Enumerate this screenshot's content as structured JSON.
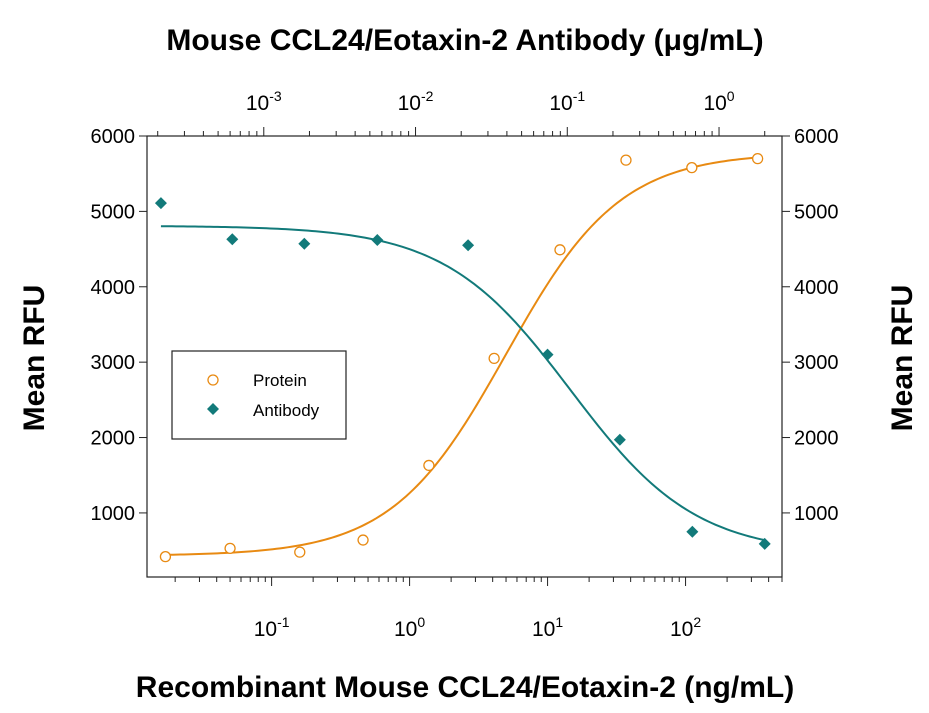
{
  "chart_data": {
    "type": "scatter",
    "title": "Mouse CCL24/Eotaxin-2 Antibody (μg/mL)",
    "xlabel": "Recombinant Mouse CCL24/Eotaxin-2 (ng/mL)",
    "ylabel": "Mean RFU",
    "ylabel_right": "Mean RFU",
    "x_scale": "log",
    "xlim": [
      0.0125,
      500
    ],
    "ylim": [
      150,
      6000
    ],
    "y_ticks": [
      1000,
      2000,
      3000,
      4000,
      5000,
      6000
    ],
    "x_ticks": [
      {
        "value": 0.1,
        "base": "10",
        "exp": "-1"
      },
      {
        "value": 1,
        "base": "10",
        "exp": "0"
      },
      {
        "value": 10,
        "base": "10",
        "exp": "1"
      },
      {
        "value": 100,
        "base": "10",
        "exp": "2"
      }
    ],
    "x2_scale": "log",
    "x2lim": [
      0.00017,
      2.6
    ],
    "x2_ticks": [
      {
        "value": 0.001,
        "base": "10",
        "exp": "-3"
      },
      {
        "value": 0.01,
        "base": "10",
        "exp": "-2"
      },
      {
        "value": 0.1,
        "base": "10",
        "exp": "-1"
      },
      {
        "value": 1,
        "base": "10",
        "exp": "0"
      }
    ],
    "legend_position": "left",
    "series": [
      {
        "name": "Protein",
        "marker": "open-circle",
        "color": "#E88A12",
        "axis": "bottom",
        "points": [
          [
            0.017,
            420
          ],
          [
            0.05,
            530
          ],
          [
            0.16,
            480
          ],
          [
            0.46,
            640
          ],
          [
            1.38,
            1630
          ],
          [
            4.1,
            3050
          ],
          [
            12.3,
            4490
          ],
          [
            37,
            5680
          ],
          [
            111,
            5580
          ],
          [
            333,
            5700
          ]
        ],
        "fit": {
          "bottom": 430,
          "top": 5780,
          "ec50": 5.0,
          "hill": 1.05
        }
      },
      {
        "name": "Antibody",
        "marker": "filled-diamond",
        "color": "#127A7A",
        "axis": "top",
        "points": [
          [
            0.00021,
            5110
          ],
          [
            0.00062,
            4630
          ],
          [
            0.00185,
            4570
          ],
          [
            0.0056,
            4620
          ],
          [
            0.0222,
            4550
          ],
          [
            0.0741,
            3100
          ],
          [
            0.222,
            1970
          ],
          [
            0.667,
            750
          ],
          [
            2.0,
            590
          ]
        ],
        "fit": {
          "bottom": 450,
          "top": 4810,
          "ec50": 0.105,
          "hill": 1.05
        }
      }
    ]
  }
}
